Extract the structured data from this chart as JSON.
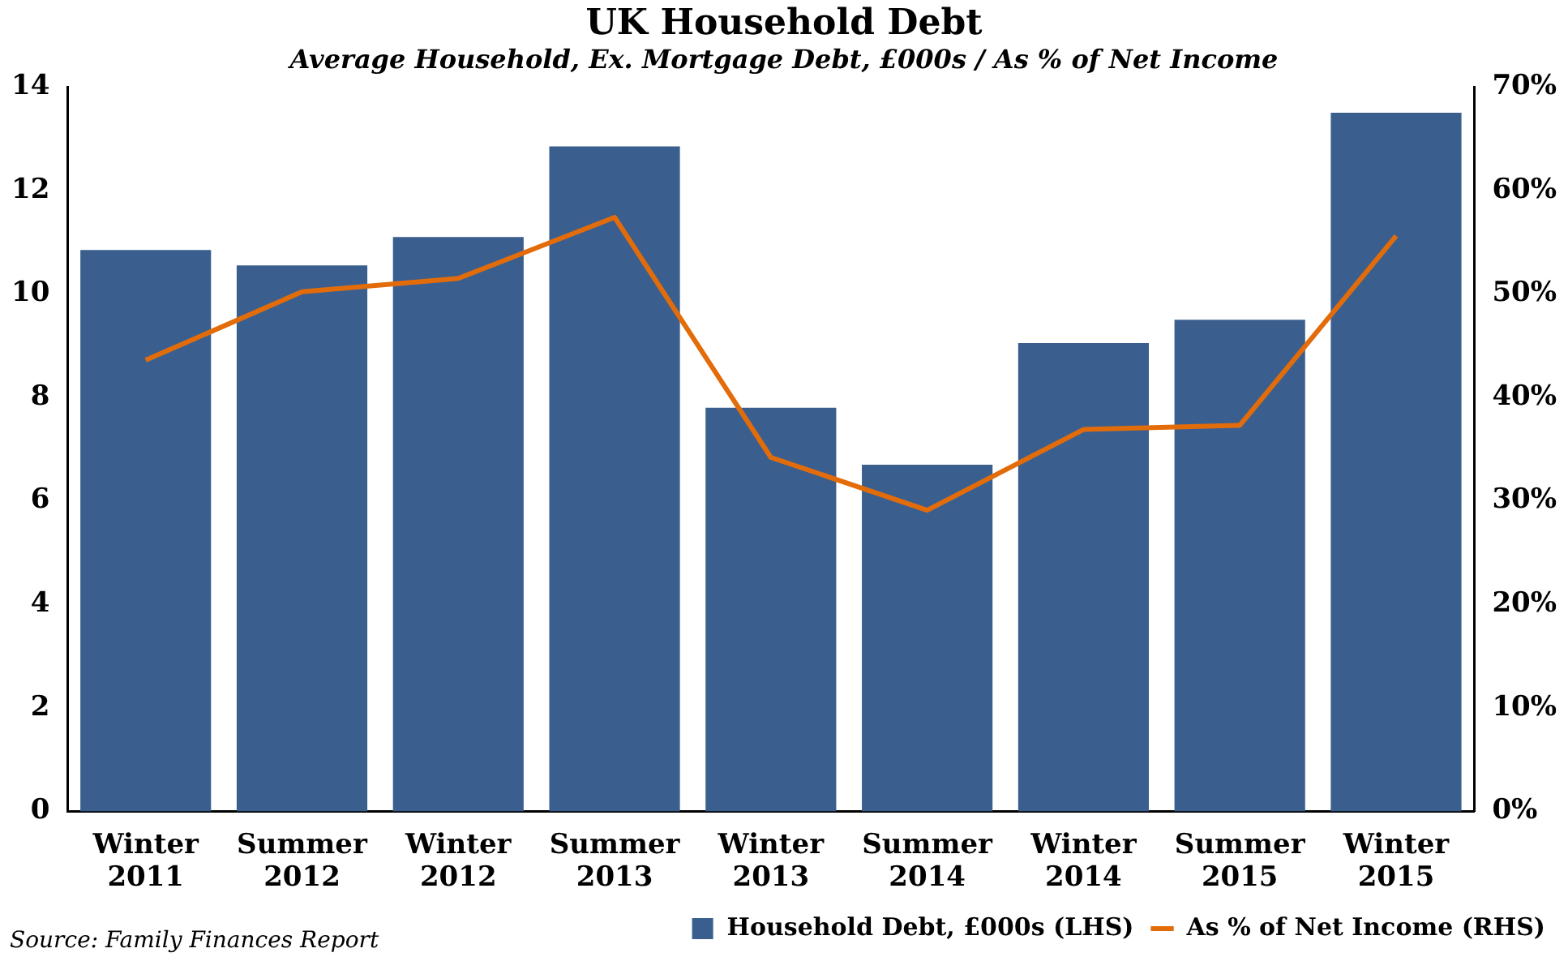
{
  "chart_data": {
    "type": "bar",
    "title": "UK Household Debt",
    "subtitle": "Average Household, Ex. Mortgage Debt, £000s / As % of Net Income",
    "categories": [
      "Winter 2011",
      "Summer 2012",
      "Winter 2012",
      "Summer 2013",
      "Winter 2013",
      "Summer 2014",
      "Winter 2014",
      "Summer 2015",
      "Winter 2015"
    ],
    "series": [
      {
        "name": "Household Debt, £000s (LHS)",
        "color": "#3a5f8f",
        "values": [
          10.85,
          10.55,
          11.1,
          12.85,
          7.8,
          6.7,
          9.05,
          9.5,
          13.5
        ]
      },
      {
        "name": "As % of Net Income (RHS)",
        "type": "line",
        "axis": "y2",
        "color": "#e36c0a",
        "values": [
          43.6,
          50.2,
          51.5,
          57.4,
          34.2,
          29.1,
          36.9,
          37.3,
          55.6
        ]
      }
    ],
    "ylim": [
      0,
      14
    ],
    "yticks": [
      0,
      2,
      4,
      6,
      8,
      10,
      12,
      14
    ],
    "y2lim": [
      0,
      70
    ],
    "y2ticks": [
      {
        "value": 0,
        "label": "0%"
      },
      {
        "value": 10,
        "label": "10%"
      },
      {
        "value": 20,
        "label": "20%"
      },
      {
        "value": 30,
        "label": "30%"
      },
      {
        "value": 40,
        "label": "40%"
      },
      {
        "value": 50,
        "label": "50%"
      },
      {
        "value": 60,
        "label": "60%"
      },
      {
        "value": 70,
        "label": "70%"
      }
    ],
    "grid": false,
    "legend": "bottom",
    "marker": "none",
    "line_style": "solid",
    "annotations": [
      "Source: Family Finances Report"
    ]
  }
}
